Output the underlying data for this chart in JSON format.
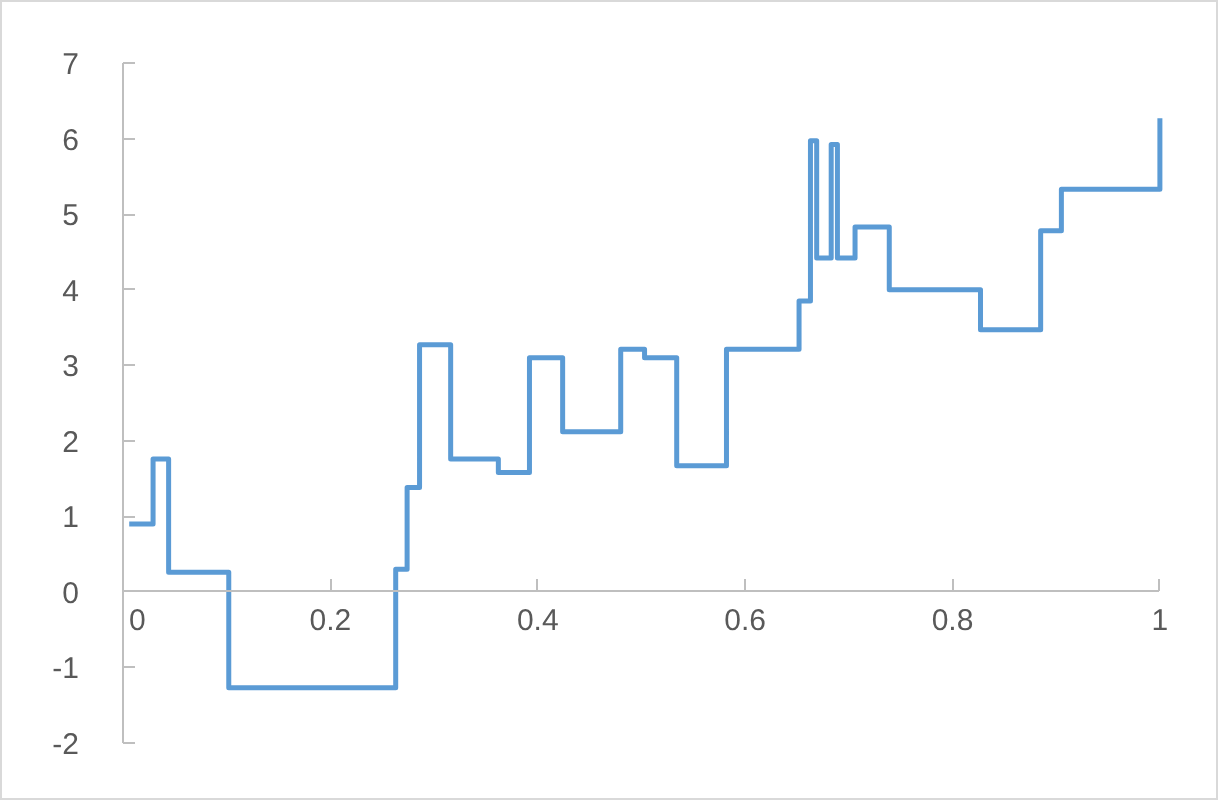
{
  "chart_data": {
    "type": "step",
    "x": [
      0.006,
      0.029,
      0.044,
      0.102,
      0.263,
      0.274,
      0.286,
      0.316,
      0.362,
      0.392,
      0.424,
      0.48,
      0.503,
      0.534,
      0.582,
      0.652,
      0.663,
      0.669,
      0.683,
      0.689,
      0.706,
      0.739,
      0.827,
      0.885,
      0.905,
      1.0
    ],
    "values": [
      0.9,
      1.76,
      0.26,
      -1.27,
      0.3,
      1.38,
      3.27,
      1.76,
      1.58,
      3.1,
      2.12,
      3.21,
      3.1,
      1.67,
      3.21,
      3.85,
      5.97,
      4.42,
      5.92,
      4.42,
      4.83,
      4.0,
      3.47,
      4.78,
      5.33,
      6.27
    ],
    "color": "#5b9bd5",
    "xlim": [
      0,
      1
    ],
    "ylim": [
      -2,
      7
    ],
    "xticks": [
      0,
      0.2,
      0.4,
      0.6,
      0.8,
      1
    ],
    "yticks": [
      -2,
      -1,
      0,
      1,
      2,
      3,
      4,
      5,
      6,
      7
    ],
    "grid": false
  }
}
